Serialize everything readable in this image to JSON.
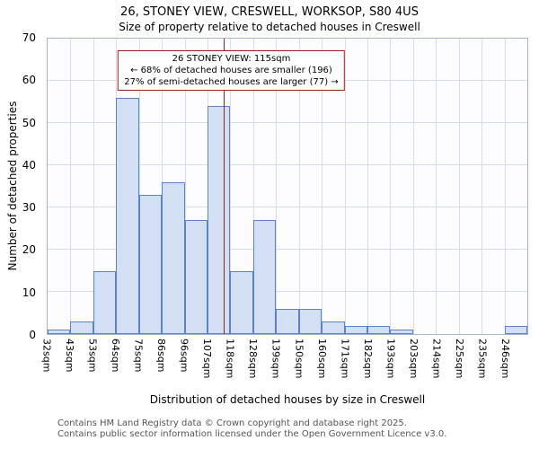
{
  "title": "26, STONEY VIEW, CRESWELL, WORKSOP, S80 4US",
  "subtitle": "Size of property relative to detached houses in Creswell",
  "chart_data": {
    "type": "bar",
    "categories": [
      "32sqm",
      "43sqm",
      "53sqm",
      "64sqm",
      "75sqm",
      "86sqm",
      "96sqm",
      "107sqm",
      "118sqm",
      "128sqm",
      "139sqm",
      "150sqm",
      "160sqm",
      "171sqm",
      "182sqm",
      "193sqm",
      "203sqm",
      "214sqm",
      "225sqm",
      "235sqm",
      "246sqm"
    ],
    "values": [
      1,
      3,
      15,
      56,
      33,
      36,
      27,
      54,
      15,
      27,
      6,
      6,
      3,
      2,
      2,
      1,
      0,
      0,
      0,
      0,
      2
    ],
    "title": "26, STONEY VIEW, CRESWELL, WORKSOP, S80 4US",
    "subtitle": "Size of property relative to detached houses in Creswell",
    "xlabel": "Distribution of detached houses by size in Creswell",
    "ylabel": "Number of detached properties",
    "ylim": [
      0,
      70
    ],
    "ytick_step": 10,
    "grid": true,
    "legend": "none",
    "bar_fill": "#d3e0f4",
    "bar_border": "#5b84c4",
    "marker": {
      "value_label": "115sqm",
      "position_between": [
        "107sqm",
        "118sqm"
      ],
      "fraction": 0.727,
      "color": "#a02020",
      "annotation_lines": [
        "26 STONEY VIEW: 115sqm",
        "← 68% of detached houses are smaller (196)",
        "27% of semi-detached houses are larger (77) →"
      ]
    }
  },
  "footer": {
    "line1": "Contains HM Land Registry data © Crown copyright and database right 2025.",
    "line2": "Contains public sector information licensed under the Open Government Licence v3.0."
  }
}
